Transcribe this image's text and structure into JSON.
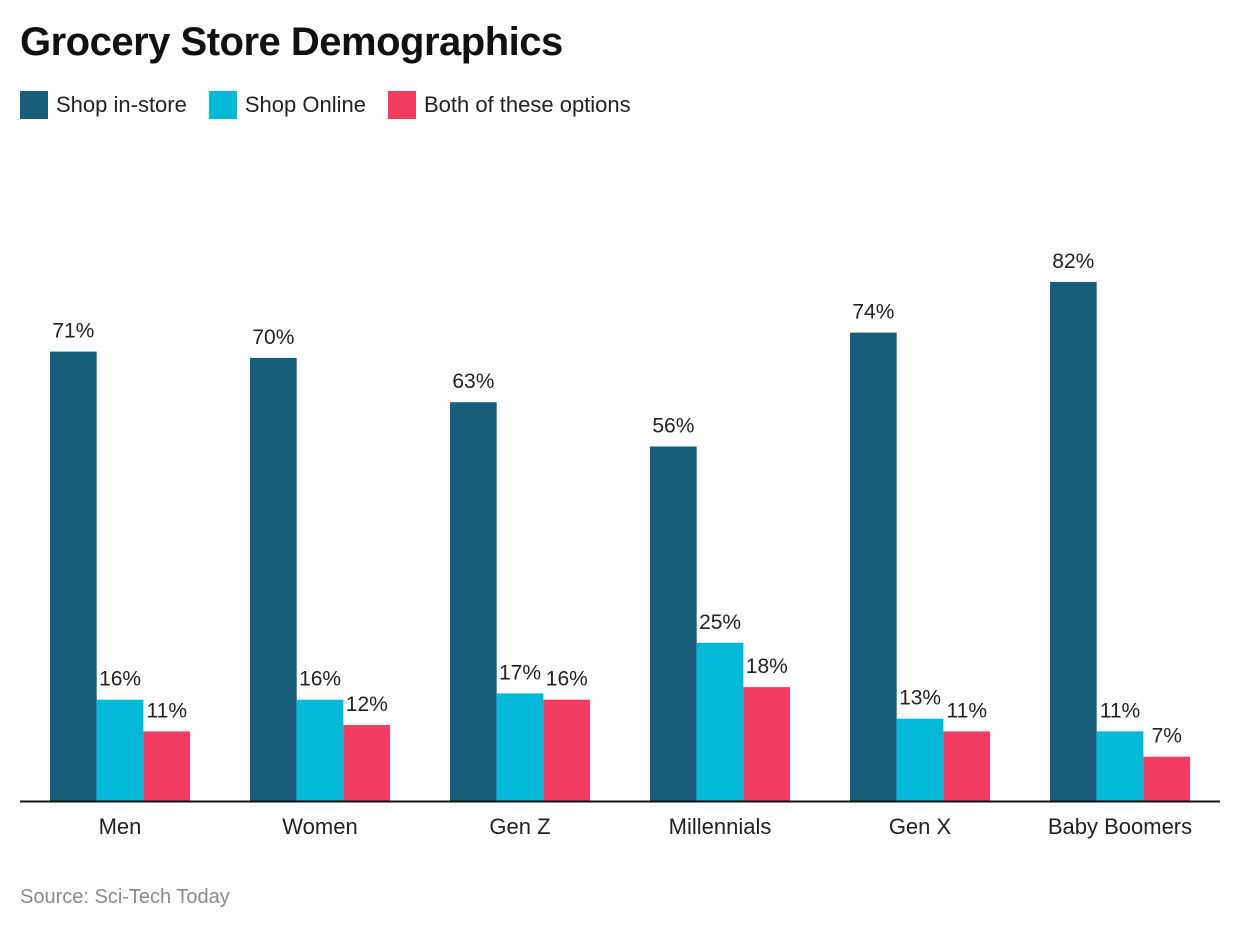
{
  "title": "Grocery Store Demographics",
  "source": "Source: Sci-Tech Today",
  "colors": {
    "instore": "#185e7a",
    "online": "#04b8d8",
    "both": "#f23d63"
  },
  "chart_data": {
    "type": "bar",
    "title": "Grocery Store Demographics",
    "xlabel": "",
    "ylabel": "",
    "ylim": [
      0,
      90
    ],
    "grid": false,
    "legend_position": "top-left",
    "categories": [
      "Men",
      "Women",
      "Gen Z",
      "Millennials",
      "Gen X",
      "Baby Boomers"
    ],
    "series": [
      {
        "name": "Shop in-store",
        "values": [
          71,
          70,
          63,
          56,
          74,
          82
        ]
      },
      {
        "name": "Shop Online",
        "values": [
          16,
          16,
          17,
          25,
          13,
          11
        ]
      },
      {
        "name": "Both of these options",
        "values": [
          11,
          12,
          16,
          18,
          11,
          7
        ]
      }
    ],
    "value_suffix": "%"
  }
}
